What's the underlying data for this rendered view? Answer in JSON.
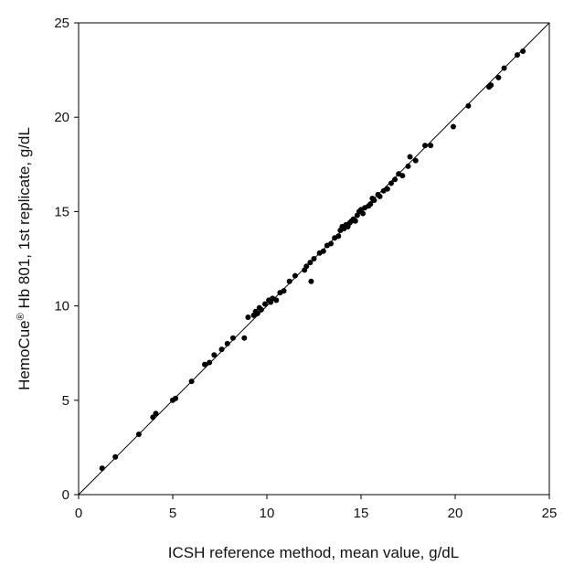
{
  "chart_data": {
    "type": "scatter",
    "title": "",
    "xlabel": "ICSH reference method, mean value,  g/dL",
    "ylabel": {
      "before": "HemoCue",
      "superscript": "®",
      "after": " Hb 801, 1st replicate, g/dL"
    },
    "xlim": [
      0,
      25
    ],
    "ylim": [
      0,
      25
    ],
    "x_ticks": [
      0,
      5,
      10,
      15,
      20,
      25
    ],
    "y_ticks": [
      0,
      5,
      10,
      15,
      20,
      25
    ],
    "x_tick_labels": [
      "0",
      "5",
      "10",
      "15",
      "20",
      "25"
    ],
    "y_tick_labels": [
      "0",
      "5",
      "10",
      "15",
      "20",
      "25"
    ],
    "grid": false,
    "legend": "none",
    "reference_line": {
      "type": "identity",
      "from": [
        0,
        0
      ],
      "to": [
        25,
        25
      ]
    },
    "colors": {
      "points": "#000000",
      "line": "#000000",
      "frame": "#000000"
    },
    "series": [
      {
        "x": [
          1.25,
          1.95,
          3.2,
          3.95,
          4.1,
          5.0,
          5.15,
          6.0,
          6.7,
          6.95,
          7.2,
          7.6,
          7.9,
          8.2,
          8.8,
          9.0,
          9.3,
          9.4,
          9.5,
          9.6,
          9.7,
          9.9,
          10.1,
          10.2,
          10.3,
          10.5,
          10.7,
          10.9,
          11.2,
          11.5,
          12.0,
          12.1,
          12.3,
          12.35,
          12.5,
          12.8,
          13.0,
          13.2,
          13.4,
          13.6,
          13.8,
          13.9,
          14.0,
          14.1,
          14.2,
          14.3,
          14.4,
          14.5,
          14.6,
          14.7,
          14.8,
          14.9,
          15.0,
          15.1,
          15.2,
          15.4,
          15.5,
          15.6,
          15.7,
          15.9,
          16.0,
          16.2,
          16.4,
          16.6,
          16.8,
          17.0,
          17.2,
          17.5,
          17.6,
          17.9,
          18.4,
          18.7,
          19.9,
          20.7,
          21.8,
          21.9,
          22.3,
          22.6,
          23.3,
          23.6
        ],
        "y": [
          1.4,
          2.0,
          3.2,
          4.1,
          4.3,
          5.0,
          5.1,
          6.0,
          6.9,
          7.0,
          7.4,
          7.7,
          8.0,
          8.3,
          8.3,
          9.4,
          9.5,
          9.7,
          9.6,
          9.9,
          9.8,
          10.1,
          10.3,
          10.2,
          10.4,
          10.3,
          10.7,
          10.8,
          11.3,
          11.6,
          11.9,
          12.1,
          12.3,
          11.3,
          12.5,
          12.8,
          12.9,
          13.2,
          13.3,
          13.6,
          13.7,
          14.0,
          14.2,
          14.1,
          14.3,
          14.2,
          14.4,
          14.5,
          14.6,
          14.5,
          14.8,
          15.0,
          15.1,
          14.9,
          15.2,
          15.3,
          15.4,
          15.7,
          15.6,
          15.9,
          15.8,
          16.1,
          16.2,
          16.5,
          16.7,
          17.0,
          16.9,
          17.4,
          17.9,
          17.7,
          18.5,
          18.5,
          19.5,
          20.6,
          21.6,
          21.7,
          22.1,
          22.6,
          23.3,
          23.5
        ]
      }
    ]
  }
}
